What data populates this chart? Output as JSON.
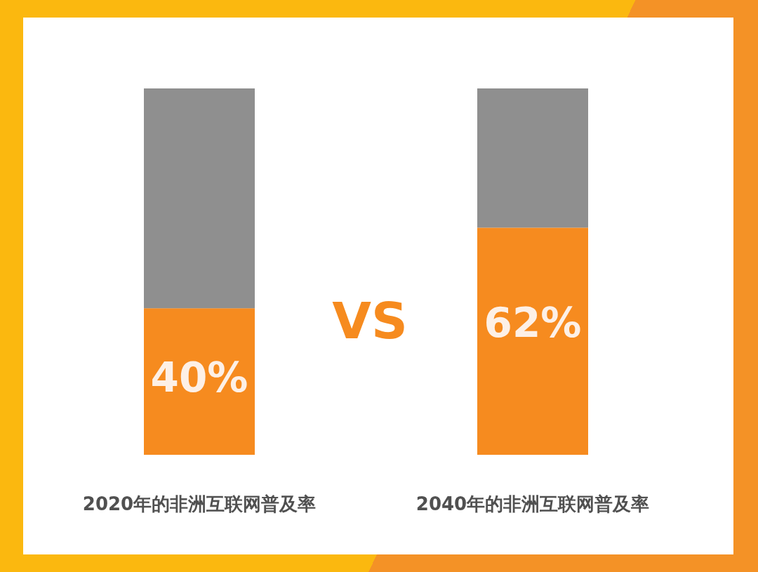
{
  "chart_data": {
    "type": "bar",
    "stacked": true,
    "categories": [
      "2020年的非洲互联网普及率",
      "2040年的非洲互联网普及率"
    ],
    "series": [
      {
        "color": "#f68b1f",
        "values": [
          40,
          62
        ],
        "value_labels": [
          "40%",
          "62%"
        ]
      },
      {
        "color": "#8f8f8f",
        "values": [
          60,
          38
        ]
      }
    ],
    "ylim": [
      0,
      100
    ],
    "tick_labels": "x",
    "annotations": [
      "VS"
    ]
  }
}
